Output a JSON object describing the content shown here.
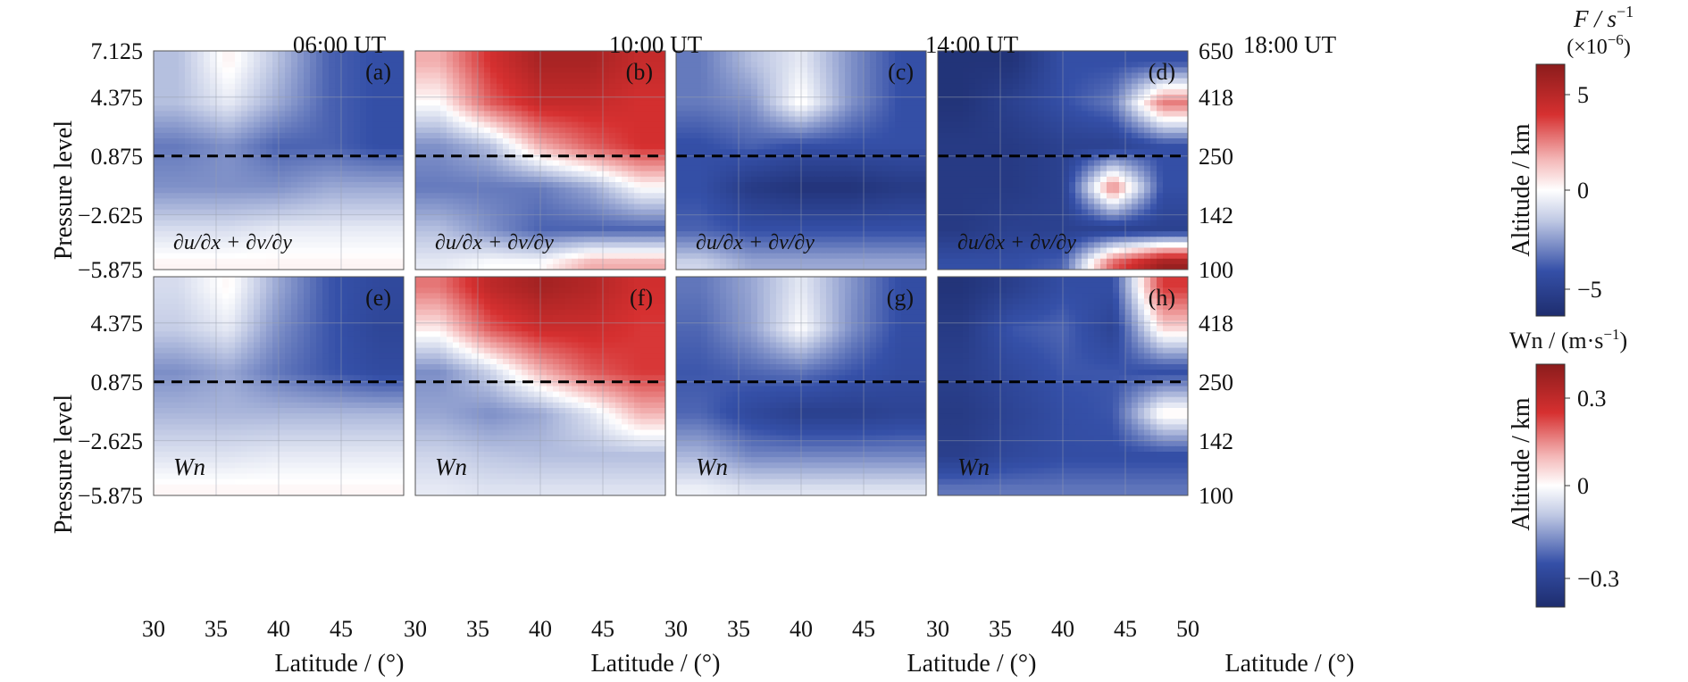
{
  "figure": {
    "column_titles": [
      "06:00 UT",
      "10:00 UT",
      "14:00 UT",
      "18:00 UT"
    ],
    "panel_labels": [
      "(a)",
      "(b)",
      "(c)",
      "(d)",
      "(e)",
      "(f)",
      "(g)",
      "(h)"
    ],
    "row_quantity_labels": {
      "top": "∂u/∂x + ∂v/∂y",
      "bottom": "Wn"
    },
    "left_axis_label": "Pressure level",
    "right_axis_label": "Altitude / km",
    "x_axis_label": "Latitude / (°)",
    "pressure_ticks": [
      "7.125",
      "4.375",
      "0.875",
      "−2.625",
      "−5.875"
    ],
    "altitude_ticks": [
      "650",
      "418",
      "250",
      "142",
      "100"
    ],
    "latitude_ticks": [
      "30",
      "35",
      "40",
      "45"
    ],
    "latitude_end_tick": "50",
    "colorbar_top": {
      "title": "F / s",
      "title_exp": "−1",
      "scale": "(×10",
      "scale_exp": "−6",
      "scale_close": ")",
      "ticks": [
        "5",
        "0",
        "−5"
      ]
    },
    "colorbar_bottom": {
      "title": "Wn / (m·s",
      "title_exp": "−1",
      "title_close": ")",
      "ticks": [
        "0.3",
        "0",
        "−0.3"
      ]
    },
    "colors": {
      "dark_red": "#8b1c1c",
      "red": "#d63030",
      "white": "#ffffff",
      "light_blue": "#c0c9e4",
      "blue": "#3550a8",
      "dark_blue": "#1e2d6e"
    }
  },
  "chart_data": [
    {
      "type": "heatmap",
      "panel": "(a)",
      "title": "06:00 UT",
      "quantity": "∂u/∂x + ∂v/∂y",
      "x_range": [
        30,
        50
      ],
      "ylim_pressure": [
        -5.875,
        7.125
      ],
      "ylim_altitude_km": [
        100,
        650
      ],
      "rows_pressure": [
        6.5,
        4.0,
        1.5,
        -1.0,
        -3.5,
        -5.5
      ],
      "cols_latitude": [
        32,
        36,
        40,
        44,
        48
      ],
      "z": [
        [
          -1.5,
          0.3,
          -1.5,
          -3.5,
          -4.0
        ],
        [
          -1.5,
          -0.5,
          -2.0,
          -3.5,
          -4.0
        ],
        [
          -3.0,
          -2.5,
          -3.5,
          -3.5,
          -4.0
        ],
        [
          -2.5,
          -2.5,
          -2.5,
          -2.0,
          -2.0
        ],
        [
          -0.8,
          -0.8,
          -0.5,
          -0.5,
          -0.5
        ],
        [
          0.2,
          0.2,
          0.2,
          0.2,
          0.2
        ]
      ]
    },
    {
      "type": "heatmap",
      "panel": "(b)",
      "title": "10:00 UT",
      "quantity": "∂u/∂x + ∂v/∂y",
      "x_range": [
        30,
        50
      ],
      "rows_pressure": [
        6.5,
        4.0,
        1.5,
        -1.0,
        -3.5,
        -5.5
      ],
      "cols_latitude": [
        32,
        36,
        40,
        44,
        48
      ],
      "z": [
        [
          1.5,
          4.0,
          5.5,
          5.5,
          4.5
        ],
        [
          0.0,
          3.0,
          4.5,
          4.5,
          4.0
        ],
        [
          -2.5,
          -1.5,
          1.5,
          3.0,
          4.0
        ],
        [
          -3.0,
          -3.0,
          -3.0,
          -2.0,
          0.0
        ],
        [
          -1.5,
          -2.5,
          -3.5,
          -3.5,
          -3.5
        ],
        [
          -0.5,
          0.0,
          0.0,
          1.5,
          1.5
        ]
      ]
    },
    {
      "type": "heatmap",
      "panel": "(c)",
      "title": "14:00 UT",
      "quantity": "∂u/∂x + ∂v/∂y",
      "x_range": [
        30,
        50
      ],
      "rows_pressure": [
        6.5,
        4.0,
        1.5,
        -1.0,
        -3.5,
        -5.5
      ],
      "cols_latitude": [
        32,
        36,
        40,
        44,
        48
      ],
      "z": [
        [
          -3.0,
          -1.5,
          -0.5,
          -2.5,
          -4.0
        ],
        [
          -3.0,
          -2.5,
          0.2,
          -2.5,
          -4.0
        ],
        [
          -4.0,
          -3.5,
          -4.0,
          -4.0,
          -4.0
        ],
        [
          -4.0,
          -5.5,
          -6.0,
          -6.0,
          -5.5
        ],
        [
          -3.5,
          -4.0,
          -4.0,
          -4.0,
          -4.0
        ],
        [
          -1.0,
          -2.0,
          -2.0,
          -2.0,
          -2.0
        ]
      ]
    },
    {
      "type": "heatmap",
      "panel": "(d)",
      "title": "18:00 UT",
      "quantity": "∂u/∂x + ∂v/∂y",
      "x_range": [
        30,
        50
      ],
      "rows_pressure": [
        6.5,
        4.0,
        1.5,
        -1.0,
        -3.5,
        -5.5
      ],
      "cols_latitude": [
        32,
        36,
        40,
        44,
        48
      ],
      "z": [
        [
          -6.0,
          -6.0,
          -4.0,
          -4.0,
          -4.0
        ],
        [
          -6.0,
          -5.0,
          -4.0,
          -3.0,
          2.5
        ],
        [
          -5.5,
          -5.5,
          -5.0,
          -5.0,
          -4.0
        ],
        [
          -5.5,
          -5.5,
          -5.0,
          2.5,
          -4.0
        ],
        [
          -5.5,
          -5.0,
          -5.0,
          -5.0,
          -5.0
        ],
        [
          -4.0,
          -4.0,
          -3.5,
          3.0,
          6.0
        ]
      ]
    },
    {
      "type": "heatmap",
      "panel": "(e)",
      "title": "06:00 UT",
      "quantity": "Wn",
      "x_range": [
        30,
        50
      ],
      "rows_pressure": [
        6.5,
        4.0,
        1.5,
        -1.0,
        -3.5,
        -5.5
      ],
      "cols_latitude": [
        32,
        36,
        40,
        44,
        48
      ],
      "z": [
        [
          -0.05,
          0.01,
          -0.12,
          -0.22,
          -0.26
        ],
        [
          -0.07,
          -0.03,
          -0.15,
          -0.22,
          -0.27
        ],
        [
          -0.15,
          -0.12,
          -0.18,
          -0.22,
          -0.25
        ],
        [
          -0.1,
          -0.1,
          -0.1,
          -0.1,
          -0.1
        ],
        [
          -0.04,
          -0.04,
          -0.03,
          -0.03,
          -0.03
        ],
        [
          0.01,
          0.01,
          0.01,
          0.01,
          0.01
        ]
      ]
    },
    {
      "type": "heatmap",
      "panel": "(f)",
      "title": "10:00 UT",
      "quantity": "Wn",
      "x_range": [
        30,
        50
      ],
      "rows_pressure": [
        6.5,
        4.0,
        1.5,
        -1.0,
        -3.5,
        -5.5
      ],
      "cols_latitude": [
        32,
        36,
        40,
        44,
        48
      ],
      "z": [
        [
          0.15,
          0.28,
          0.33,
          0.3,
          0.24
        ],
        [
          0.02,
          0.18,
          0.25,
          0.25,
          0.22
        ],
        [
          -0.15,
          -0.06,
          0.08,
          0.18,
          0.22
        ],
        [
          -0.12,
          -0.15,
          -0.12,
          -0.04,
          0.08
        ],
        [
          -0.06,
          -0.08,
          -0.09,
          -0.09,
          -0.09
        ],
        [
          -0.03,
          -0.04,
          -0.04,
          -0.04,
          -0.04
        ]
      ]
    },
    {
      "type": "heatmap",
      "panel": "(g)",
      "title": "14:00 UT",
      "quantity": "Wn",
      "x_range": [
        30,
        50
      ],
      "rows_pressure": [
        6.5,
        4.0,
        1.5,
        -1.0,
        -3.5,
        -5.5
      ],
      "cols_latitude": [
        32,
        36,
        40,
        44,
        48
      ],
      "z": [
        [
          -0.18,
          -0.12,
          -0.03,
          -0.14,
          -0.24
        ],
        [
          -0.2,
          -0.13,
          0.0,
          -0.15,
          -0.24
        ],
        [
          -0.22,
          -0.2,
          -0.18,
          -0.22,
          -0.25
        ],
        [
          -0.2,
          -0.26,
          -0.3,
          -0.3,
          -0.28
        ],
        [
          -0.1,
          -0.16,
          -0.16,
          -0.16,
          -0.16
        ],
        [
          -0.02,
          -0.04,
          -0.04,
          -0.04,
          -0.04
        ]
      ]
    },
    {
      "type": "heatmap",
      "panel": "(h)",
      "title": "18:00 UT",
      "quantity": "Wn",
      "x_range": [
        30,
        50
      ],
      "rows_pressure": [
        6.5,
        4.0,
        1.5,
        -1.0,
        -3.5,
        -5.5
      ],
      "cols_latitude": [
        32,
        36,
        40,
        44,
        48
      ],
      "z": [
        [
          -0.35,
          -0.3,
          -0.24,
          -0.24,
          0.22
        ],
        [
          -0.32,
          -0.22,
          -0.2,
          -0.28,
          0.04
        ],
        [
          -0.3,
          -0.26,
          -0.22,
          -0.22,
          -0.24
        ],
        [
          -0.32,
          -0.28,
          -0.24,
          -0.22,
          0.02
        ],
        [
          -0.3,
          -0.26,
          -0.24,
          -0.24,
          -0.24
        ],
        [
          -0.18,
          -0.18,
          -0.18,
          -0.18,
          -0.18
        ]
      ]
    }
  ]
}
